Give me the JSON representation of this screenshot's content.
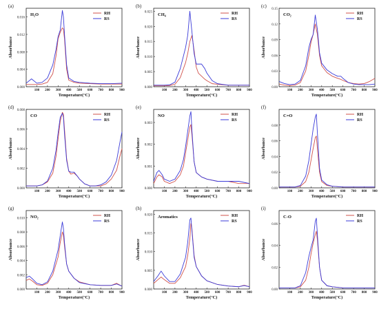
{
  "figure": {
    "x_axis_label": "Temperature(°C)",
    "y_axis_label": "Absorbance",
    "colors": {
      "RH": "#d0504a",
      "RS": "#3a3ad8"
    }
  },
  "chart_data": [
    {
      "type": "line",
      "panel_label": "(a)",
      "title": "H₂O",
      "xlim": [
        0,
        900
      ],
      "ylim": [
        0,
        0.018
      ],
      "x_ticks": [
        100,
        200,
        300,
        400,
        500,
        600,
        700,
        800,
        900
      ],
      "y_ticks": [
        0.0,
        0.004,
        0.008,
        0.012,
        0.016
      ],
      "y_decimals": 3,
      "x": [
        0,
        50,
        100,
        150,
        200,
        250,
        280,
        300,
        320,
        340,
        350,
        360,
        380,
        400,
        450,
        500,
        600,
        700,
        800,
        900
      ],
      "series": [
        {
          "name": "RH",
          "values": [
            0.0005,
            0.0005,
            0.0005,
            0.0006,
            0.001,
            0.003,
            0.007,
            0.011,
            0.0125,
            0.0135,
            0.0132,
            0.011,
            0.004,
            0.0015,
            0.001,
            0.0008,
            0.0007,
            0.0006,
            0.0006,
            0.0006
          ]
        },
        {
          "name": "RS",
          "values": [
            0.0008,
            0.0018,
            0.0008,
            0.001,
            0.002,
            0.005,
            0.0085,
            0.0115,
            0.013,
            0.0175,
            0.016,
            0.012,
            0.005,
            0.002,
            0.0012,
            0.001,
            0.0008,
            0.0007,
            0.0007,
            0.0008
          ]
        }
      ]
    },
    {
      "type": "line",
      "panel_label": "(b)",
      "title": "CH₄",
      "xlim": [
        0,
        900
      ],
      "ylim": [
        0,
        0.026
      ],
      "x_ticks": [
        100,
        200,
        300,
        400,
        500,
        600,
        700,
        800,
        900
      ],
      "y_ticks": [
        0.0,
        0.005,
        0.01,
        0.015,
        0.02,
        0.025
      ],
      "y_decimals": 3,
      "x": [
        0,
        50,
        100,
        150,
        200,
        250,
        300,
        320,
        340,
        360,
        380,
        400,
        420,
        450,
        480,
        500,
        550,
        600,
        700,
        800,
        900
      ],
      "series": [
        {
          "name": "RH",
          "values": [
            0.0003,
            0.0003,
            0.0003,
            0.0004,
            0.0008,
            0.003,
            0.008,
            0.011,
            0.015,
            0.017,
            0.012,
            0.0065,
            0.0045,
            0.0035,
            0.0025,
            0.002,
            0.001,
            0.0008,
            0.0005,
            0.0005,
            0.0005
          ]
        },
        {
          "name": "RS",
          "values": [
            0.0005,
            0.0005,
            0.0005,
            0.0006,
            0.0015,
            0.006,
            0.013,
            0.017,
            0.025,
            0.018,
            0.011,
            0.0075,
            0.0075,
            0.0075,
            0.006,
            0.0045,
            0.002,
            0.001,
            0.0005,
            0.0005,
            0.0005
          ]
        }
      ]
    },
    {
      "type": "line",
      "panel_label": "(c)",
      "title": "CO₂",
      "xlim": [
        0,
        900
      ],
      "ylim": [
        0,
        0.15
      ],
      "x_ticks": [
        100,
        200,
        300,
        400,
        500,
        600,
        700,
        800,
        900
      ],
      "y_ticks": [
        0.0,
        0.03,
        0.06,
        0.09,
        0.12,
        0.15
      ],
      "y_decimals": 2,
      "x": [
        0,
        50,
        100,
        150,
        200,
        250,
        280,
        300,
        320,
        340,
        360,
        380,
        400,
        450,
        500,
        550,
        580,
        600,
        650,
        700,
        750,
        800,
        850,
        900
      ],
      "series": [
        {
          "name": "RH",
          "values": [
            0.005,
            0.003,
            0.002,
            0.003,
            0.008,
            0.03,
            0.06,
            0.085,
            0.1,
            0.12,
            0.1,
            0.06,
            0.04,
            0.027,
            0.02,
            0.016,
            0.014,
            0.012,
            0.008,
            0.006,
            0.005,
            0.006,
            0.01,
            0.016
          ]
        },
        {
          "name": "RS",
          "values": [
            0.01,
            0.006,
            0.004,
            0.005,
            0.012,
            0.04,
            0.075,
            0.09,
            0.1,
            0.137,
            0.11,
            0.065,
            0.045,
            0.032,
            0.025,
            0.02,
            0.02,
            0.016,
            0.008,
            0.005,
            0.004,
            0.004,
            0.004,
            0.005
          ]
        }
      ]
    },
    {
      "type": "line",
      "panel_label": "(d)",
      "title": "CO",
      "xlim": [
        0,
        900
      ],
      "ylim": [
        0,
        0.008
      ],
      "x_ticks": [
        100,
        200,
        300,
        400,
        500,
        600,
        700,
        800,
        900
      ],
      "y_ticks": [
        0.0,
        0.002,
        0.004,
        0.006,
        0.008
      ],
      "y_decimals": 3,
      "x": [
        0,
        50,
        100,
        150,
        200,
        250,
        280,
        300,
        320,
        340,
        350,
        360,
        380,
        400,
        420,
        450,
        480,
        500,
        550,
        600,
        650,
        700,
        750,
        800,
        850,
        880,
        900
      ],
      "series": [
        {
          "name": "RH",
          "values": [
            0.0002,
            0.0002,
            0.0002,
            0.0003,
            0.0006,
            0.0015,
            0.0032,
            0.005,
            0.0068,
            0.0077,
            0.0075,
            0.006,
            0.003,
            0.0017,
            0.0014,
            0.0015,
            0.0012,
            0.0009,
            0.0004,
            0.0002,
            0.0002,
            0.0002,
            0.0004,
            0.0009,
            0.0018,
            0.0032,
            0.004
          ]
        },
        {
          "name": "RS",
          "values": [
            0.0002,
            0.0002,
            0.0002,
            0.0003,
            0.0007,
            0.002,
            0.0038,
            0.0056,
            0.0072,
            0.0076,
            0.0072,
            0.0055,
            0.0028,
            0.0017,
            0.0016,
            0.0016,
            0.0012,
            0.0009,
            0.0004,
            0.0002,
            0.0002,
            0.0003,
            0.0006,
            0.0013,
            0.0028,
            0.0046,
            0.0057
          ]
        }
      ]
    },
    {
      "type": "line",
      "panel_label": "(e)",
      "title": "NO",
      "xlim": [
        0,
        900
      ],
      "ylim": [
        0,
        0.0036
      ],
      "x_ticks": [
        100,
        200,
        300,
        400,
        500,
        600,
        700,
        800,
        900
      ],
      "y_ticks": [
        0.0,
        0.001,
        0.002,
        0.003
      ],
      "y_decimals": 3,
      "x": [
        0,
        30,
        50,
        80,
        100,
        150,
        200,
        250,
        280,
        300,
        320,
        340,
        350,
        360,
        380,
        400,
        450,
        500,
        600,
        700,
        800,
        900
      ],
      "series": [
        {
          "name": "RH",
          "values": [
            0.0002,
            0.0005,
            0.0006,
            0.0005,
            0.0003,
            0.0002,
            0.0003,
            0.0006,
            0.001,
            0.0016,
            0.0022,
            0.0028,
            0.0029,
            0.0024,
            0.0012,
            0.0007,
            0.0005,
            0.0004,
            0.0003,
            0.0003,
            0.0002,
            0.0002
          ]
        },
        {
          "name": "RS",
          "values": [
            0.0003,
            0.0007,
            0.0008,
            0.0006,
            0.0004,
            0.0003,
            0.0004,
            0.0008,
            0.0013,
            0.0019,
            0.0026,
            0.0033,
            0.0035,
            0.0026,
            0.0012,
            0.0007,
            0.0005,
            0.0004,
            0.0003,
            0.0003,
            0.0003,
            0.0002
          ]
        }
      ]
    },
    {
      "type": "line",
      "panel_label": "(f)",
      "title": "C=O",
      "xlim": [
        0,
        900
      ],
      "ylim": [
        0,
        0.1
      ],
      "x_ticks": [
        100,
        200,
        300,
        400,
        500,
        600,
        700,
        800,
        900
      ],
      "y_ticks": [
        0.0,
        0.02,
        0.04,
        0.06,
        0.08
      ],
      "y_decimals": 2,
      "x": [
        0,
        50,
        100,
        150,
        200,
        250,
        280,
        300,
        320,
        340,
        350,
        360,
        380,
        400,
        450,
        500,
        600,
        700,
        800,
        900
      ],
      "series": [
        {
          "name": "RH",
          "values": [
            0.001,
            0.001,
            0.001,
            0.001,
            0.002,
            0.008,
            0.02,
            0.035,
            0.05,
            0.064,
            0.066,
            0.05,
            0.02,
            0.008,
            0.003,
            0.002,
            0.001,
            0.001,
            0.001,
            0.001
          ]
        },
        {
          "name": "RS",
          "values": [
            0.001,
            0.001,
            0.001,
            0.001,
            0.003,
            0.015,
            0.035,
            0.055,
            0.075,
            0.09,
            0.094,
            0.07,
            0.025,
            0.01,
            0.004,
            0.002,
            0.001,
            0.001,
            0.001,
            0.001
          ]
        }
      ]
    },
    {
      "type": "line",
      "panel_label": "(g)",
      "title": "NO₂",
      "xlim": [
        0,
        900
      ],
      "ylim": [
        0,
        0.011
      ],
      "x_ticks": [
        100,
        200,
        300,
        400,
        500,
        600,
        700,
        800,
        900
      ],
      "y_ticks": [
        0.0,
        0.002,
        0.004,
        0.006,
        0.008,
        0.01
      ],
      "y_decimals": 3,
      "x": [
        0,
        30,
        60,
        100,
        150,
        200,
        250,
        300,
        320,
        340,
        350,
        360,
        380,
        400,
        450,
        500,
        600,
        700,
        800,
        850,
        900
      ],
      "series": [
        {
          "name": "RH",
          "values": [
            0.0012,
            0.0014,
            0.0011,
            0.0006,
            0.0005,
            0.0008,
            0.002,
            0.0045,
            0.0065,
            0.008,
            0.0075,
            0.006,
            0.0035,
            0.0025,
            0.0015,
            0.001,
            0.0006,
            0.0005,
            0.0005,
            0.0008,
            0.0004
          ]
        },
        {
          "name": "RS",
          "values": [
            0.0016,
            0.0018,
            0.0014,
            0.0008,
            0.0006,
            0.001,
            0.0025,
            0.0055,
            0.0075,
            0.0094,
            0.0085,
            0.0065,
            0.0035,
            0.0025,
            0.0015,
            0.0009,
            0.0006,
            0.0005,
            0.0005,
            0.0007,
            0.0004
          ]
        }
      ]
    },
    {
      "type": "line",
      "panel_label": "(h)",
      "title": "Aromatics",
      "xlim": [
        0,
        900
      ],
      "ylim": [
        0,
        0.021
      ],
      "x_ticks": [
        100,
        200,
        300,
        400,
        500,
        600,
        700,
        800,
        900
      ],
      "y_ticks": [
        0.0,
        0.005,
        0.01,
        0.015,
        0.02
      ],
      "y_decimals": 3,
      "x": [
        0,
        40,
        70,
        100,
        150,
        200,
        250,
        300,
        320,
        340,
        350,
        360,
        380,
        400,
        450,
        500,
        600,
        700,
        800,
        850,
        900
      ],
      "series": [
        {
          "name": "RH",
          "values": [
            0.0015,
            0.0025,
            0.0032,
            0.0025,
            0.0015,
            0.0015,
            0.003,
            0.006,
            0.009,
            0.0135,
            0.0175,
            0.016,
            0.009,
            0.006,
            0.0035,
            0.0022,
            0.0012,
            0.0008,
            0.0006,
            0.001,
            0.0006
          ]
        },
        {
          "name": "RS",
          "values": [
            0.002,
            0.0035,
            0.0048,
            0.0035,
            0.002,
            0.002,
            0.004,
            0.0085,
            0.0125,
            0.0185,
            0.019,
            0.0155,
            0.0085,
            0.006,
            0.0035,
            0.0022,
            0.0012,
            0.0008,
            0.0006,
            0.0009,
            0.0006
          ]
        }
      ]
    },
    {
      "type": "line",
      "panel_label": "(i)",
      "title": "C-O",
      "xlim": [
        0,
        900
      ],
      "ylim": [
        0,
        0.072
      ],
      "x_ticks": [
        100,
        200,
        300,
        400,
        500,
        600,
        700,
        800,
        900
      ],
      "y_ticks": [
        0.0,
        0.02,
        0.04,
        0.06
      ],
      "y_decimals": 2,
      "x": [
        0,
        50,
        100,
        150,
        200,
        250,
        280,
        300,
        320,
        340,
        350,
        360,
        380,
        400,
        450,
        500,
        600,
        700,
        800,
        900
      ],
      "series": [
        {
          "name": "RH",
          "values": [
            0.001,
            0.001,
            0.001,
            0.001,
            0.002,
            0.008,
            0.02,
            0.032,
            0.042,
            0.05,
            0.053,
            0.045,
            0.02,
            0.008,
            0.003,
            0.002,
            0.001,
            0.001,
            0.001,
            0.001
          ]
        },
        {
          "name": "RS",
          "values": [
            0.001,
            0.001,
            0.001,
            0.001,
            0.003,
            0.015,
            0.03,
            0.038,
            0.045,
            0.062,
            0.065,
            0.05,
            0.02,
            0.008,
            0.003,
            0.002,
            0.001,
            0.001,
            0.001,
            0.001
          ]
        }
      ]
    }
  ]
}
